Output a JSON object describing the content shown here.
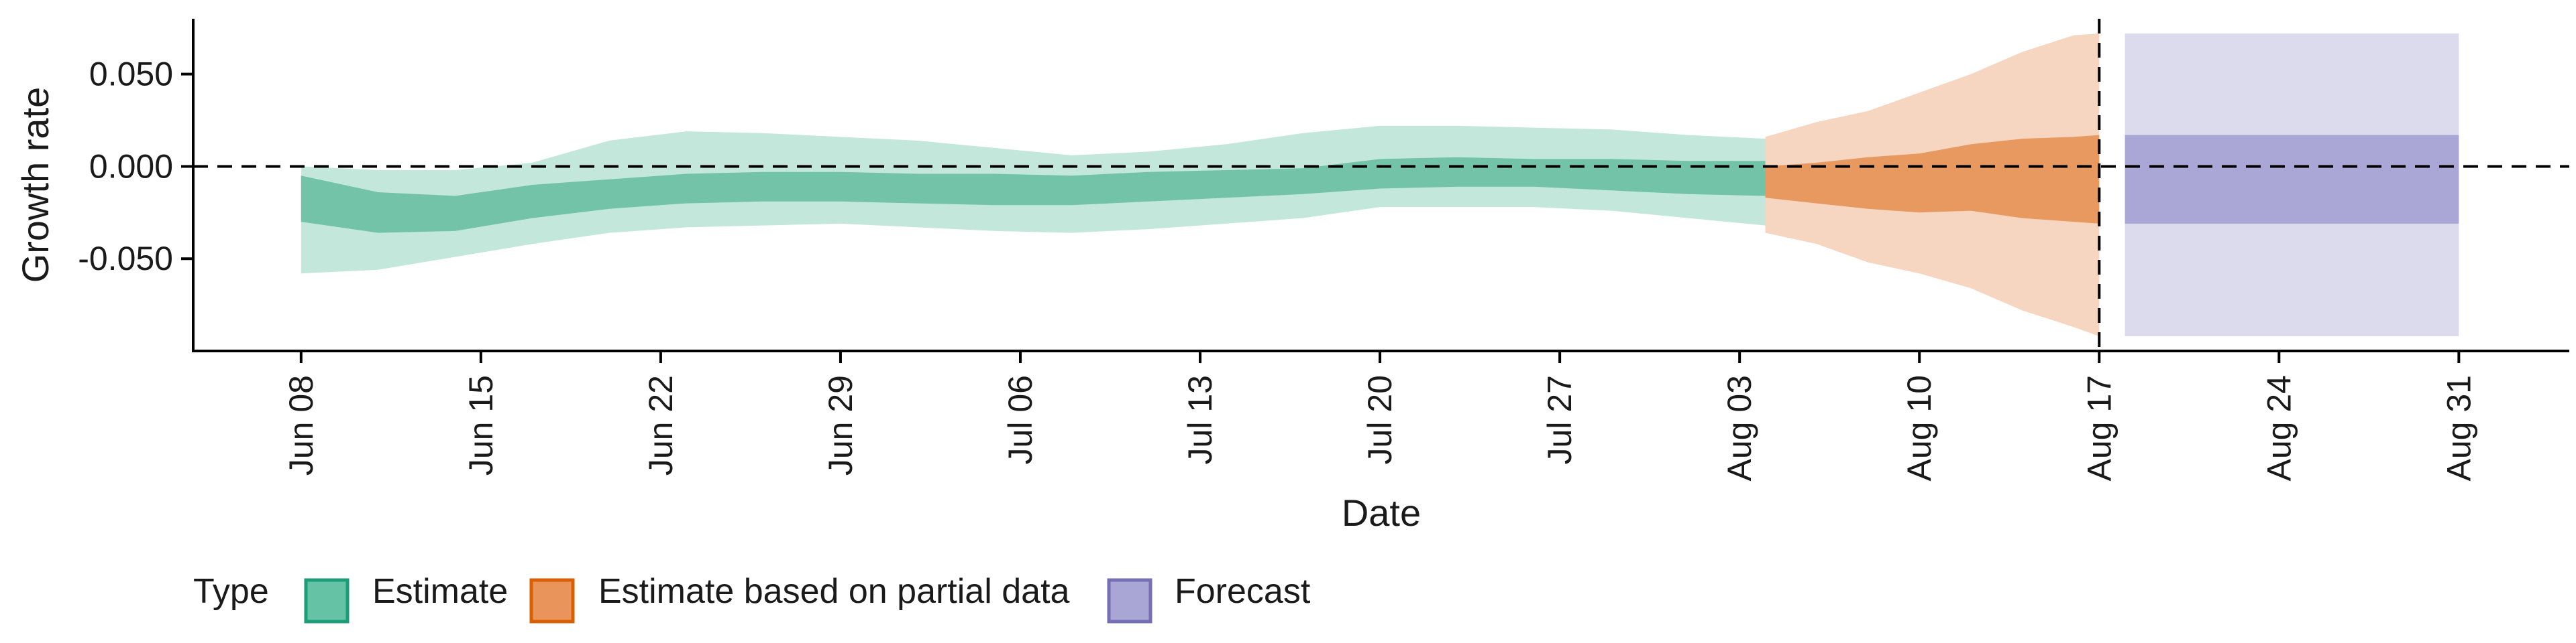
{
  "chart_data": {
    "type": "area",
    "xlabel": "Date",
    "ylabel": "Growth rate",
    "x_ticks": [
      "Jun 08",
      "Jun 15",
      "Jun 22",
      "Jun 29",
      "Jul 06",
      "Jul 13",
      "Jul 20",
      "Jul 27",
      "Aug 03",
      "Aug 10",
      "Aug 17",
      "Aug 24",
      "Aug 31"
    ],
    "y_ticks": [
      "0.050",
      "0.000",
      "-0.050"
    ],
    "ylim": [
      -0.1,
      0.08
    ],
    "xlim_days_from_jun08": [
      -4.2,
      88.3
    ],
    "reference_lines": {
      "horizontal_y": 0,
      "vertical_x": "Aug 17"
    },
    "legend": {
      "title": "Type",
      "position": "bottom",
      "entries": [
        {
          "label": "Estimate",
          "color": "#66c2a5",
          "edge": "#1b9e77"
        },
        {
          "label": "Estimate based on partial data",
          "color": "#e8945a",
          "edge": "#d95f02"
        },
        {
          "label": "Forecast",
          "color": "#a9a5d4",
          "edge": "#7570b3"
        }
      ]
    },
    "series": [
      {
        "name": "Estimate",
        "color_outer": "#c4e7dc",
        "color_inner": "#72c3a8",
        "x": [
          "Jun 08",
          "Jun 11",
          "Jun 14",
          "Jun 17",
          "Jun 20",
          "Jun 23",
          "Jun 26",
          "Jun 29",
          "Jul 02",
          "Jul 05",
          "Jul 08",
          "Jul 11",
          "Jul 14",
          "Jul 17",
          "Jul 20",
          "Jul 23",
          "Jul 26",
          "Jul 29",
          "Aug 01",
          "Aug 04"
        ],
        "inner_upper": [
          -0.005,
          -0.014,
          -0.016,
          -0.01,
          -0.007,
          -0.004,
          -0.003,
          -0.003,
          -0.004,
          -0.004,
          -0.005,
          -0.003,
          -0.002,
          -0.001,
          0.004,
          0.005,
          0.004,
          0.004,
          0.003,
          0.003
        ],
        "inner_lower": [
          -0.03,
          -0.036,
          -0.035,
          -0.028,
          -0.023,
          -0.02,
          -0.019,
          -0.019,
          -0.02,
          -0.021,
          -0.021,
          -0.019,
          -0.017,
          -0.015,
          -0.012,
          -0.011,
          -0.011,
          -0.013,
          -0.015,
          -0.016
        ],
        "outer_upper": [
          0.0,
          -0.002,
          -0.002,
          0.002,
          0.014,
          0.019,
          0.018,
          0.016,
          0.014,
          0.01,
          0.006,
          0.008,
          0.012,
          0.018,
          0.022,
          0.022,
          0.021,
          0.02,
          0.017,
          0.015
        ],
        "outer_lower": [
          -0.058,
          -0.056,
          -0.049,
          -0.042,
          -0.036,
          -0.033,
          -0.032,
          -0.031,
          -0.033,
          -0.035,
          -0.036,
          -0.034,
          -0.031,
          -0.028,
          -0.022,
          -0.022,
          -0.022,
          -0.024,
          -0.028,
          -0.032
        ]
      },
      {
        "name": "Estimate based on partial data",
        "color_outer": "#f6d6c0",
        "color_inner": "#e8995f",
        "x": [
          "Aug 04",
          "Aug 06",
          "Aug 08",
          "Aug 10",
          "Aug 12",
          "Aug 14",
          "Aug 16",
          "Aug 17"
        ],
        "inner_upper": [
          0.0,
          0.002,
          0.005,
          0.007,
          0.012,
          0.015,
          0.016,
          0.017
        ],
        "inner_lower": [
          -0.017,
          -0.02,
          -0.023,
          -0.025,
          -0.024,
          -0.028,
          -0.03,
          -0.031
        ],
        "outer_upper": [
          0.016,
          0.024,
          0.03,
          0.04,
          0.05,
          0.062,
          0.071,
          0.072
        ],
        "outer_lower": [
          -0.036,
          -0.042,
          -0.052,
          -0.058,
          -0.066,
          -0.078,
          -0.087,
          -0.092
        ]
      },
      {
        "name": "Forecast",
        "color_outer": "#dcdbee",
        "color_inner": "#aaa6d5",
        "x": [
          "Aug 18",
          "Aug 31"
        ],
        "inner_upper": [
          0.017,
          0.017
        ],
        "inner_lower": [
          -0.031,
          -0.031
        ],
        "outer_upper": [
          0.072,
          0.072
        ],
        "outer_lower": [
          -0.092,
          -0.092
        ]
      }
    ]
  }
}
